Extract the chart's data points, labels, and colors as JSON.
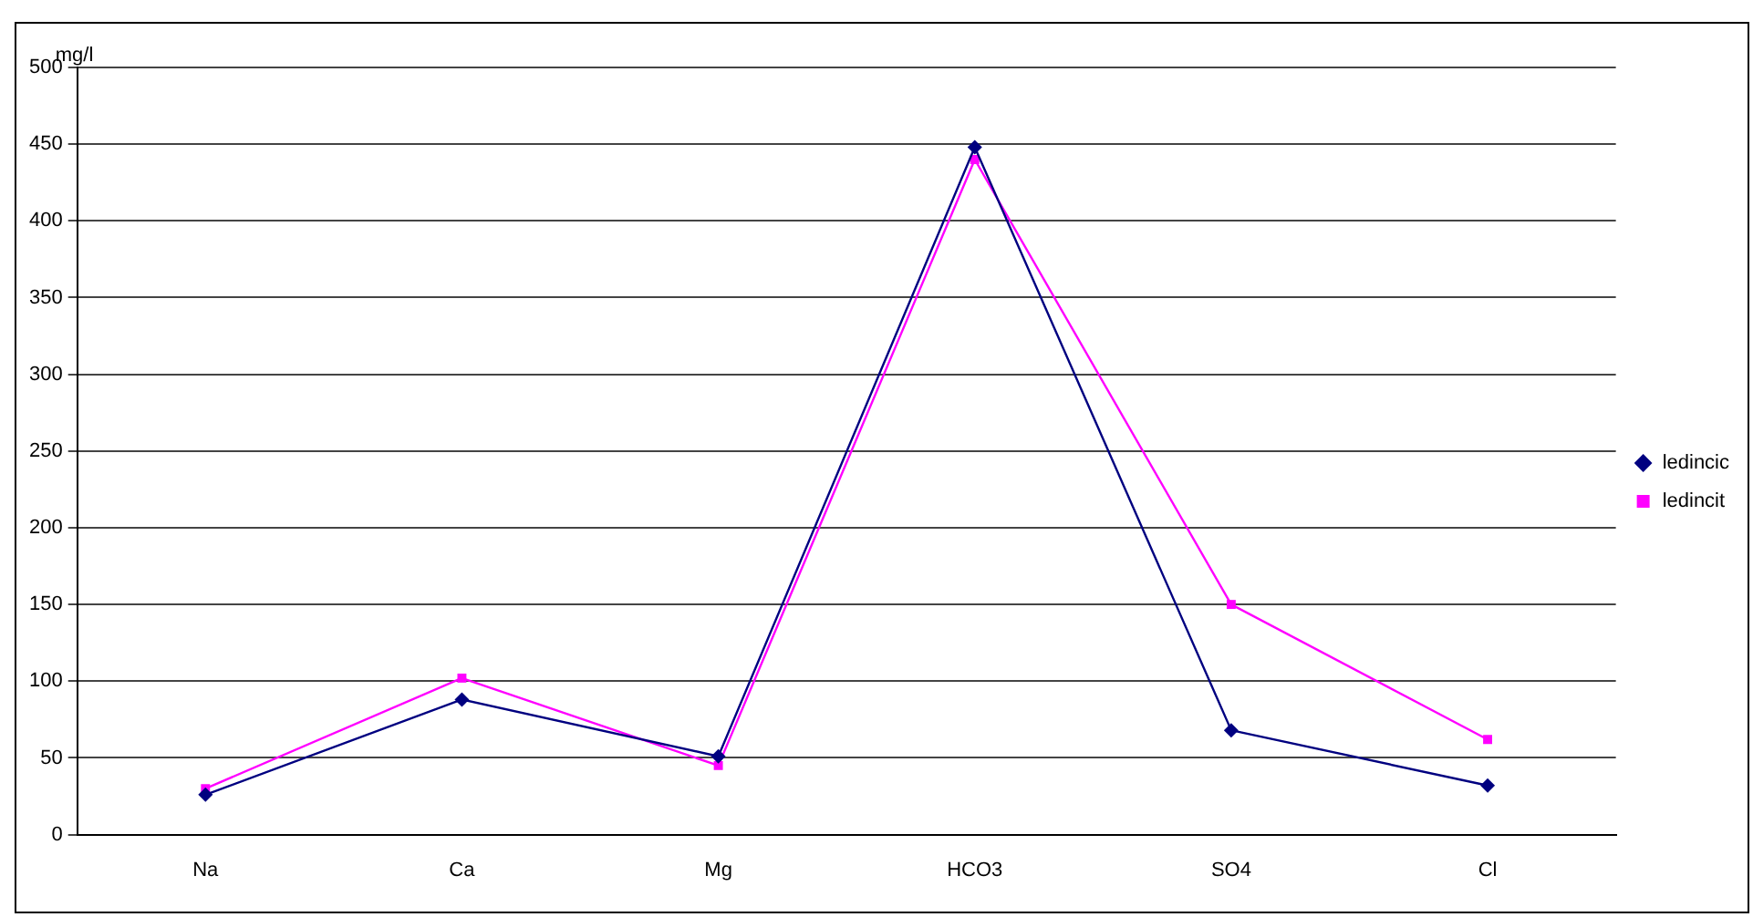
{
  "chart_data": {
    "type": "line",
    "ylabel": "mg/l",
    "categories": [
      "Na",
      "Ca",
      "Mg",
      "HCO3",
      "SO4",
      "Cl"
    ],
    "series": [
      {
        "name": "ledincic",
        "color": "#000080",
        "values": [
          26,
          88,
          51,
          448,
          68,
          32
        ],
        "marker": "diamond"
      },
      {
        "name": "ledincit",
        "color": "#ff00ff",
        "values": [
          30,
          102,
          45,
          440,
          150,
          62
        ],
        "marker": "square"
      }
    ],
    "ylim": [
      0,
      500
    ],
    "yticks": [
      0,
      50,
      100,
      150,
      200,
      250,
      300,
      350,
      400,
      450,
      500
    ],
    "grid": "y",
    "legend": "right",
    "line_style": "solid"
  }
}
